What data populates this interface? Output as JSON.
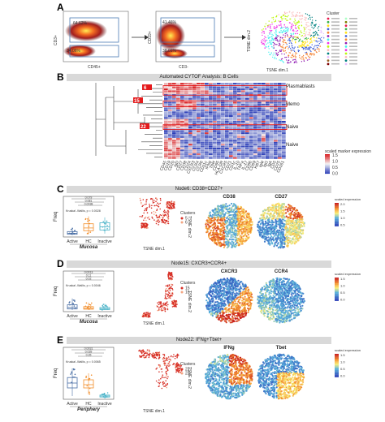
{
  "panels": {
    "A": {
      "letter": "A",
      "plot1": {
        "ylabel": "CD3+",
        "xlabel": "CD45+",
        "q_top": "64.62%",
        "q_bottom": "34.06%"
      },
      "plot2": {
        "ylabel": "CD19+",
        "xlabel": "CD3-",
        "q_top": "41.46%",
        "q_bottom": "38.01%"
      },
      "tsne": {
        "xlabel": "TSNE dim.1",
        "ylabel": "TSNE dim.2"
      },
      "legend_title": "Cluster"
    },
    "B": {
      "letter": "B",
      "title": "Automated CYTOF Analysis: B Cells",
      "node_labels": [
        "6",
        "15",
        "22"
      ],
      "row_annotations": [
        "Plasmablasts",
        "Memo",
        "Naive",
        "Naive"
      ],
      "legend_title": "scaled marker expression",
      "legend_ticks": [
        "1.5",
        "1.0",
        "0.5",
        "0.0"
      ],
      "markers": [
        "CD45",
        "CD19",
        "CD20",
        "IgD",
        "CD27",
        "CD38",
        "CD24",
        "CXCR3",
        "CCR4",
        "CCR6",
        "CD11c",
        "IFNg",
        "Tbet",
        "CD95",
        "HLA-DR",
        "CXCR5",
        "CD21",
        "CD1c",
        "IL-10",
        "TNFa",
        "IL-17",
        "CD86",
        "CD69",
        "Ki67",
        "IgM",
        "IgG",
        "IgA",
        "CD5",
        "CD25",
        "CD161"
      ]
    },
    "C": {
      "letter": "C",
      "title": "Node6: CD38+CD27+",
      "box": {
        "ylabel": "Freq",
        "groups": [
          "Active",
          "HC",
          "Inactive"
        ],
        "tissue": "Mucosa",
        "stat": "Kruskal -Wallis, p = 0.0028",
        "sig": [
          "0.079",
          "0.081",
          "0.0038"
        ]
      },
      "tsne": {
        "xlabel": "TSNE dim.1",
        "ylabel": "TSNE dim.2",
        "legend_title": "Clusters",
        "legend_items": [
          "5",
          "6"
        ]
      },
      "maps": [
        "CD38",
        "CD27"
      ],
      "scale_title": "scaled expression",
      "scale_ticks": [
        "2.0",
        "1.5",
        "1.0",
        "0.5"
      ]
    },
    "D": {
      "letter": "D",
      "title": "Node15: CXCR3+CCR4+",
      "box": {
        "ylabel": "Freq",
        "groups": [
          "Active",
          "HC",
          "Inactive"
        ],
        "tissue": "Mucosa",
        "stat": "Kruskal -Wallis, p = 0.0046",
        "sig": [
          "0.0013",
          "0.11",
          "0.02"
        ]
      },
      "tsne": {
        "xlabel": "TSNE dim.1",
        "ylabel": "TSNE dim.2",
        "legend_title": "Clusters",
        "legend_items": [
          "15",
          "16"
        ]
      },
      "maps": [
        "CXCR3",
        "CCR4"
      ],
      "scale_title": "scaled expression",
      "scale_ticks": [
        "1.5",
        "1.0",
        "0.5",
        "0.0"
      ]
    },
    "E": {
      "letter": "E",
      "title": "Node22: IFNg+Tbet+",
      "box": {
        "ylabel": "Freq",
        "groups": [
          "Active",
          "HC",
          "Inactive"
        ],
        "tissue": "Periphery",
        "stat": "Kruskal -Wallis, p = 0.0065",
        "sig": [
          "0.0031",
          "0.039",
          "0.35"
        ]
      },
      "tsne": {
        "xlabel": "TSNE dim.1",
        "ylabel": "TSNE dim.2",
        "legend_title": "Clusters",
        "legend_items": [
          "22",
          "23"
        ]
      },
      "maps": [
        "IFNg",
        "Tbet"
      ],
      "scale_title": "scaled expression",
      "scale_ticks": [
        "1.5",
        "1.0",
        "0.5",
        "0.0"
      ]
    }
  },
  "colors": {
    "heat_low": "#2c3fb8",
    "heat_high": "#d7191c",
    "active": "#4a6fa5",
    "hc": "#f28e2b",
    "inactive": "#4bb3c8",
    "cluster_red": "#d73027",
    "grey_bar": "#d9d9d9"
  }
}
